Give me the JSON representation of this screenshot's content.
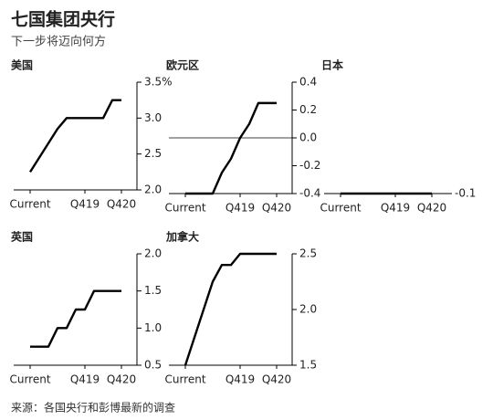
{
  "title": "七国集团央行",
  "subtitle": "下一步将迈向何方",
  "source": "来源：各国央行和彭博最新的调查",
  "chart_data": [
    {
      "type": "line",
      "title": "美国",
      "color": "#000000",
      "categories": [
        "Current",
        null,
        null,
        null,
        null,
        null,
        "Q419",
        null,
        null,
        null,
        "Q420"
      ],
      "values": [
        2.25,
        2.45,
        2.65,
        2.85,
        3.0,
        3.0,
        3.0,
        3.0,
        3.0,
        3.25,
        3.25
      ],
      "ylim": [
        2.0,
        3.5
      ],
      "yticks": [
        {
          "value": 2.0,
          "label": "2.0"
        },
        2.5,
        {
          "value": 3.0,
          "label": "3.0"
        },
        {
          "value": 3.5,
          "label": "3.5%"
        }
      ]
    },
    {
      "type": "line",
      "title": "欧元区",
      "color": "#000000",
      "zero_line": true,
      "categories": [
        "Current",
        null,
        null,
        null,
        null,
        null,
        "Q419",
        null,
        null,
        null,
        "Q420"
      ],
      "values": [
        -0.4,
        -0.4,
        -0.4,
        -0.4,
        -0.25,
        -0.15,
        0,
        0.1,
        0.25,
        0.25,
        0.25
      ],
      "ylim": [
        -0.4,
        0.4
      ],
      "yticks": [
        -0.4,
        -0.2,
        {
          "value": 0,
          "label": "0.0"
        },
        0.2,
        0.4
      ]
    },
    {
      "type": "line",
      "title": "日本",
      "color": "#000000",
      "categories": [
        "Current",
        null,
        null,
        null,
        null,
        null,
        "Q419",
        null,
        null,
        null,
        "Q420"
      ],
      "values": [
        -0.1,
        -0.1,
        -0.1,
        -0.1,
        -0.1,
        -0.1,
        -0.1,
        -0.1,
        -0.1,
        -0.1,
        -0.1
      ],
      "ylim": [
        -0.1,
        0.1
      ],
      "yticks": [
        -0.1
      ]
    },
    {
      "type": "line",
      "title": "英国",
      "color": "#000000",
      "categories": [
        "Current",
        null,
        null,
        null,
        null,
        null,
        "Q419",
        null,
        null,
        null,
        "Q420"
      ],
      "values": [
        0.75,
        0.75,
        0.75,
        1.0,
        1.0,
        1.25,
        1.25,
        1.5,
        1.5,
        1.5,
        1.5
      ],
      "ylim": [
        0.5,
        2.0
      ],
      "yticks": [
        0.5,
        {
          "value": 1.0,
          "label": "1.0"
        },
        1.5,
        {
          "value": 2.0,
          "label": "2.0"
        }
      ]
    },
    {
      "type": "line",
      "title": "加拿大",
      "color": "#000000",
      "categories": [
        "Current",
        null,
        null,
        null,
        null,
        null,
        "Q419",
        null,
        null,
        null,
        "Q420"
      ],
      "values": [
        1.5,
        1.75,
        2.0,
        2.25,
        2.4,
        2.4,
        2.5,
        2.5,
        2.5,
        2.5,
        2.5
      ],
      "ylim": [
        1.5,
        2.5
      ],
      "yticks": [
        1.5,
        {
          "value": 2.0,
          "label": "2.0"
        },
        2.5
      ]
    }
  ]
}
